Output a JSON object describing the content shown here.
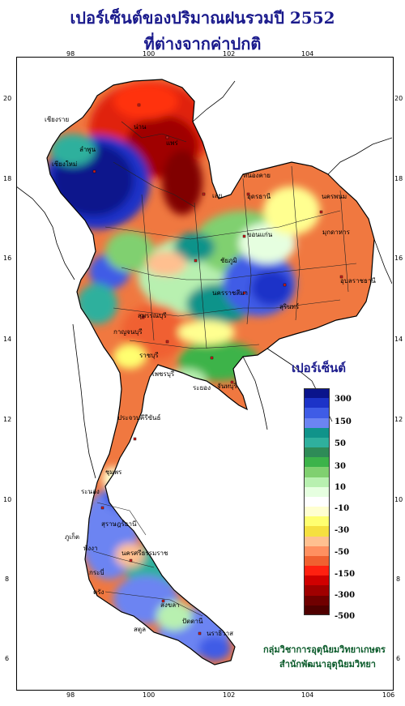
{
  "title": {
    "line1": "เปอร์เซ็นต์ของปริมาณฝนรวมปี  2552",
    "line2": "ที่ต่างจากค่าปกติ"
  },
  "axes": {
    "top_ticks": [
      "98",
      "100",
      "102",
      "104"
    ],
    "bottom_ticks": [
      "98",
      "100",
      "102",
      "104",
      "106"
    ],
    "left_ticks": [
      "20",
      "18",
      "16",
      "14",
      "12",
      "10",
      "8",
      "6"
    ],
    "right_ticks": [
      "20",
      "18",
      "16",
      "14",
      "12",
      "10",
      "8",
      "6"
    ]
  },
  "legend": {
    "title": "เปอร์เซ็นต์",
    "colors": [
      "#0a148c",
      "#1c33c8",
      "#3f5ce6",
      "#6c84f2",
      "#10938a",
      "#2fb09d",
      "#2e8b57",
      "#3cb34a",
      "#80d070",
      "#b8f0b0",
      "#e6ffe0",
      "#ffffff",
      "#ffffd0",
      "#ffff70",
      "#f5e040",
      "#ffc090",
      "#ff9060",
      "#f06030",
      "#ff2010",
      "#d00000",
      "#a00000",
      "#700000",
      "#500000"
    ],
    "labels": [
      "300",
      "150",
      "50",
      "30",
      "10",
      "-10",
      "-30",
      "-50",
      "-150",
      "-300",
      "-500"
    ]
  },
  "credit": {
    "line1": "กลุ่มวิชาการอุตุนิยมวิทยาเกษตร",
    "line2": "สำนักพัฒนาอุตุนิยมวิทยา"
  },
  "cities": [
    {
      "name": "เชียงราย"
    },
    {
      "name": "เชียงใหม่"
    },
    {
      "name": "ลำพูน"
    },
    {
      "name": "น่าน"
    },
    {
      "name": "แพร่"
    },
    {
      "name": "เลย"
    },
    {
      "name": "หนองคาย"
    },
    {
      "name": "อุดรธานี"
    },
    {
      "name": "ขอนแก่น"
    },
    {
      "name": "นครพนม"
    },
    {
      "name": "มุกดาหาร"
    },
    {
      "name": "ชัยภูมิ"
    },
    {
      "name": "นครราชสีมา"
    },
    {
      "name": "อุบลราชธานี"
    },
    {
      "name": "สุรินทร์"
    },
    {
      "name": "กาญจนบุรี"
    },
    {
      "name": "สุพรรณบุรี"
    },
    {
      "name": "ราชบุรี"
    },
    {
      "name": "เพชรบุรี"
    },
    {
      "name": "ระยอง"
    },
    {
      "name": "จันทบุรี"
    },
    {
      "name": "ประจวบคีรีขันธ์"
    },
    {
      "name": "ชุมพร"
    },
    {
      "name": "ระนอง"
    },
    {
      "name": "สุราษฎร์ธานี"
    },
    {
      "name": "พังงา"
    },
    {
      "name": "ภูเก็ต"
    },
    {
      "name": "กระบี่"
    },
    {
      "name": "นครศรีธรรมราช"
    },
    {
      "name": "ตรัง"
    },
    {
      "name": "สตูล"
    },
    {
      "name": "สงขลา"
    },
    {
      "name": "ปัตตานี"
    },
    {
      "name": "นราธิวาส"
    }
  ]
}
